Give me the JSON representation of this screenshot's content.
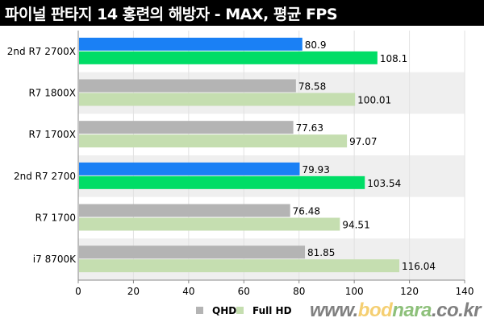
{
  "chart_data": {
    "type": "bar",
    "orientation": "horizontal",
    "title": "파이널 판타지 14 홍련의 해방자 - MAX, 평균 FPS",
    "categories": [
      "2nd R7 2700X",
      "R7 1800X",
      "R7 1700X",
      "2nd R7 2700",
      "R7 1700",
      "i7 8700K"
    ],
    "series": [
      {
        "name": "QHD",
        "values": [
          80.9,
          78.58,
          77.63,
          79.93,
          76.48,
          81.85
        ],
        "value_labels": [
          "80.9",
          "78.58",
          "77.63",
          "79.93",
          "76.48",
          "81.85"
        ],
        "color": "#b4b4b4",
        "highlight_color": "#1a80f5"
      },
      {
        "name": "Full HD",
        "values": [
          108.1,
          100.01,
          97.07,
          103.54,
          94.51,
          116.04
        ],
        "value_labels": [
          "108.1",
          "100.01",
          "97.07",
          "103.54",
          "94.51",
          "116.04"
        ],
        "color": "#c5deb0",
        "highlight_color": "#00dd66"
      }
    ],
    "highlighted_categories": [
      "2nd R7 2700X",
      "2nd R7 2700"
    ],
    "xlim": [
      0,
      140
    ],
    "xticks": [
      "0",
      "20",
      "40",
      "60",
      "80",
      "100",
      "120",
      "140"
    ],
    "grid": true,
    "legend": "bottom-center"
  },
  "watermark": {
    "parts": [
      {
        "text": "www.",
        "color": "#808080"
      },
      {
        "text": "bod",
        "color": "#f5cf72"
      },
      {
        "text": "nara",
        "color": "#8dc07a"
      },
      {
        "text": ".co.kr",
        "color": "#808080"
      }
    ]
  }
}
